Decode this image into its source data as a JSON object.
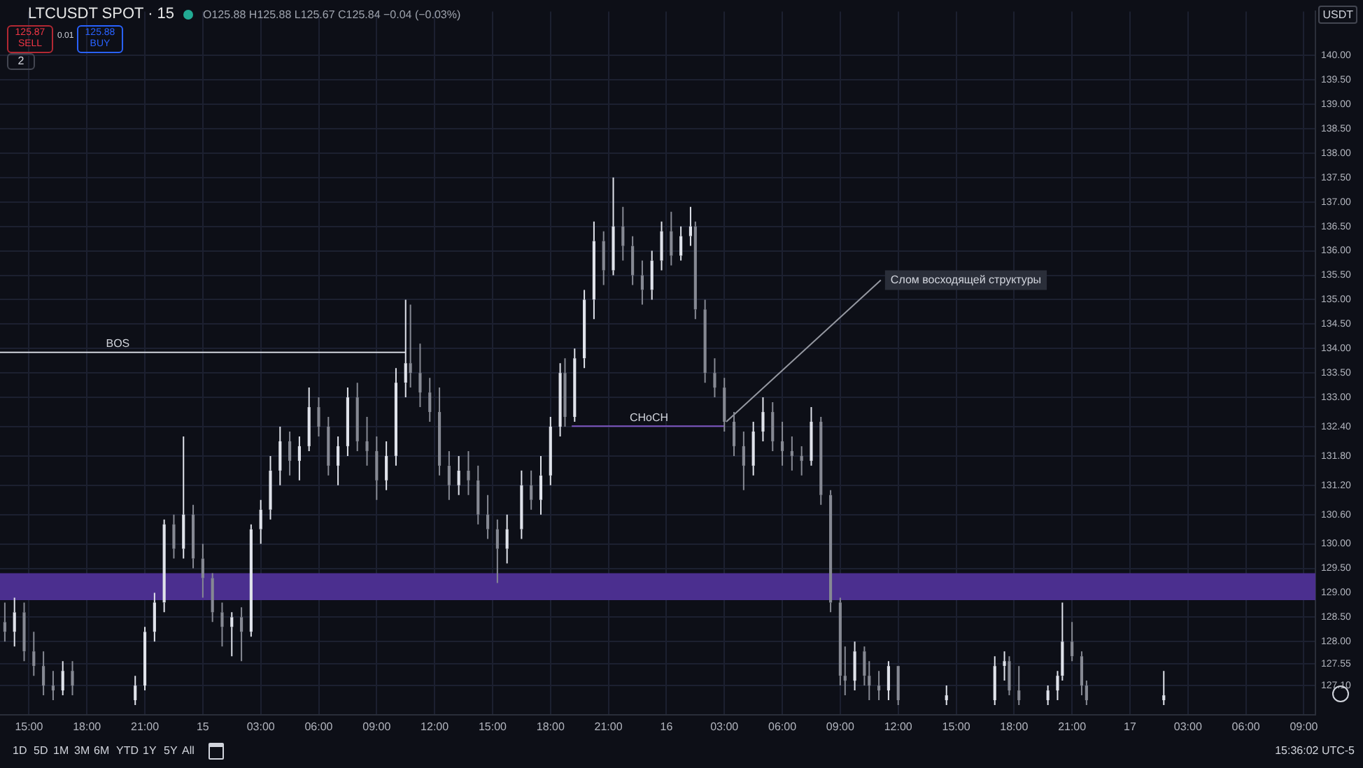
{
  "chart_data": {
    "type": "candlestick",
    "title": "LTCUSDT SPOT · 15",
    "subtitle": "O125.88 H125.88 L125.67 C125.84 −0.04 (−0.03%)",
    "ylabel": "USDT",
    "colors": [
      "#868993",
      "#e0e3eb",
      "#868993",
      "#868993",
      "#868993",
      "#868993",
      "#e0e3eb",
      "#868993",
      "#e0e3eb",
      "#e0e3eb",
      "#e0e3eb",
      "#e0e3eb",
      "#868993",
      "#e0e3eb",
      "#868993",
      "#868993",
      "#868993",
      "#868993",
      "#e0e3eb",
      "#868993",
      "#e0e3eb",
      "#e0e3eb",
      "#e0e3eb",
      "#e0e3eb",
      "#868993",
      "#e0e3eb",
      "#e0e3eb",
      "#868993",
      "#868993",
      "#e0e3eb",
      "#e0e3eb",
      "#868993",
      "#868993",
      "#868993",
      "#e0e3eb",
      "#e0e3eb",
      "#e0e3eb",
      "#868993",
      "#868993",
      "#868993",
      "#868993",
      "#868993",
      "#e0e3eb",
      "#868993",
      "#868993",
      "#868993",
      "#868993",
      "#e0e3eb",
      "#e0e3eb",
      "#868993",
      "#e0e3eb",
      "#e0e3eb",
      "#e0e3eb",
      "#868993",
      "#e0e3eb",
      "#e0e3eb",
      "#e0e3eb",
      "#868993",
      "#e0e3eb",
      "#868993",
      "#868993",
      "#868993",
      "#e0e3eb",
      "#e0e3eb",
      "#868993",
      "#e0e3eb",
      "#e0e3eb",
      "#868993",
      "#868993",
      "#868993",
      "#868993",
      "#868993",
      "#868993",
      "#e0e3eb",
      "#e0e3eb",
      "#868993",
      "#868993",
      "#868993",
      "#868993",
      "#e0e3eb",
      "#868993",
      "#868993",
      "#868993",
      "#868993",
      "#e0e3eb",
      "#868993",
      "#868993",
      "#868993",
      "#e0e3eb",
      "#868993",
      "#e0e3eb",
      "#e0e3eb",
      "#e0e3eb",
      "#868993",
      "#868993",
      "#e0e3eb",
      "#e0e3eb",
      "#e0e3eb",
      "#868993",
      "#868993",
      "#868993",
      "#e0e3eb"
    ],
    "grid": true,
    "legend": false,
    "marker": "none",
    "xlim": [
      "--01-14T13:30",
      "--01-17T09:36"
    ],
    "ylim": [
      126.5,
      140.9
    ],
    "xticks": [
      {
        "value": "--01-14T15:00",
        "label": "15:00"
      },
      {
        "value": "--01-14T18:00",
        "label": "18:00"
      },
      {
        "value": "--01-14T21:00",
        "label": "21:00"
      },
      {
        "value": "--01-15T00:00",
        "label": "15"
      },
      {
        "value": "--01-15T03:00",
        "label": "03:00"
      },
      {
        "value": "--01-15T06:00",
        "label": "06:00"
      },
      {
        "value": "--01-15T09:00",
        "label": "09:00"
      },
      {
        "value": "--01-15T12:00",
        "label": "12:00"
      },
      {
        "value": "--01-15T15:00",
        "label": "15:00"
      },
      {
        "value": "--01-15T18:00",
        "label": "18:00"
      },
      {
        "value": "--01-15T21:00",
        "label": "21:00"
      },
      {
        "value": "--01-16T00:00",
        "label": "16"
      },
      {
        "value": "--01-16T03:00",
        "label": "03:00"
      },
      {
        "value": "--01-16T06:00",
        "label": "06:00"
      },
      {
        "value": "--01-16T09:00",
        "label": "09:00"
      },
      {
        "value": "--01-16T12:00",
        "label": "12:00"
      },
      {
        "value": "--01-16T15:00",
        "label": "15:00"
      },
      {
        "value": "--01-16T18:00",
        "label": "18:00"
      },
      {
        "value": "--01-16T21:00",
        "label": "21:00"
      },
      {
        "value": "--01-17T00:00",
        "label": "17"
      },
      {
        "value": "--01-17T03:00",
        "label": "03:00"
      },
      {
        "value": "--01-17T06:00",
        "label": "06:00"
      },
      {
        "value": "--01-17T09:00",
        "label": "09:00"
      }
    ],
    "yticks": [
      {
        "value": 140,
        "label": "140.00"
      },
      {
        "value": 139.5,
        "label": "139.50"
      },
      {
        "value": 139,
        "label": "139.00"
      },
      {
        "value": 138.5,
        "label": "138.50"
      },
      {
        "value": 138,
        "label": "138.00"
      },
      {
        "value": 137.5,
        "label": "137.50"
      },
      {
        "value": 137,
        "label": "137.00"
      },
      {
        "value": 136.5,
        "label": "136.50"
      },
      {
        "value": 136,
        "label": "136.00"
      },
      {
        "value": 135.5,
        "label": "135.50"
      },
      {
        "value": 135,
        "label": "135.00"
      },
      {
        "value": 134.5,
        "label": "134.50"
      },
      {
        "value": 134,
        "label": "134.00"
      },
      {
        "value": 133.5,
        "label": "133.50"
      },
      {
        "value": 133,
        "label": "133.00"
      },
      {
        "value": 132.4,
        "label": "132.40"
      },
      {
        "value": 131.8,
        "label": "131.80"
      },
      {
        "value": 131.2,
        "label": "131.20"
      },
      {
        "value": 130.6,
        "label": "130.60"
      },
      {
        "value": 130,
        "label": "130.00"
      },
      {
        "value": 129.5,
        "label": "129.50"
      },
      {
        "value": 129,
        "label": "129.00"
      },
      {
        "value": 128.5,
        "label": "128.50"
      },
      {
        "value": 128,
        "label": "128.00"
      },
      {
        "value": 127.55,
        "label": "127.55"
      },
      {
        "value": 127.1,
        "label": "127.10"
      }
    ],
    "x": [
      "--01-14T13:45",
      "--01-14T14:15",
      "--01-14T14:45",
      "--01-14T15:15",
      "--01-14T15:45",
      "--01-14T16:15",
      "--01-14T16:45",
      "--01-14T17:15",
      "--01-14T20:30",
      "--01-14T21:00",
      "--01-14T21:30",
      "--01-14T22:00",
      "--01-14T22:30",
      "--01-14T23:00",
      "--01-14T23:30",
      "--01-15T00:00",
      "--01-15T00:30",
      "--01-15T01:00",
      "--01-15T01:30",
      "--01-15T02:00",
      "--01-15T02:30",
      "--01-15T03:00",
      "--01-15T03:30",
      "--01-15T04:00",
      "--01-15T04:30",
      "--01-15T05:00",
      "--01-15T05:30",
      "--01-15T06:00",
      "--01-15T06:30",
      "--01-15T07:00",
      "--01-15T07:30",
      "--01-15T08:00",
      "--01-15T08:30",
      "--01-15T09:00",
      "--01-15T09:30",
      "--01-15T10:00",
      "--01-15T10:30",
      "--01-15T10:45",
      "--01-15T11:15",
      "--01-15T11:45",
      "--01-15T12:15",
      "--01-15T12:45",
      "--01-15T13:15",
      "--01-15T13:45",
      "--01-15T14:15",
      "--01-15T14:45",
      "--01-15T15:15",
      "--01-15T15:45",
      "--01-15T16:30",
      "--01-15T17:00",
      "--01-15T17:30",
      "--01-15T18:00",
      "--01-15T18:30",
      "--01-15T18:45",
      "--01-15T19:15",
      "--01-15T19:45",
      "--01-15T20:15",
      "--01-15T20:45",
      "--01-15T21:15",
      "--01-15T21:45",
      "--01-15T22:15",
      "--01-15T22:45",
      "--01-15T23:15",
      "--01-15T23:45",
      "--01-16T00:15",
      "--01-16T00:45",
      "--01-16T01:15",
      "--01-16T01:30",
      "--01-16T02:00",
      "--01-16T02:30",
      "--01-16T03:00",
      "--01-16T03:30",
      "--01-16T04:00",
      "--01-16T04:30",
      "--01-16T05:00",
      "--01-16T05:30",
      "--01-16T06:00",
      "--01-16T06:30",
      "--01-16T07:00",
      "--01-16T07:30",
      "--01-16T08:00",
      "--01-16T08:30",
      "--01-16T09:00",
      "--01-16T09:15",
      "--01-16T09:45",
      "--01-16T10:15",
      "--01-16T10:30",
      "--01-16T11:00",
      "--01-16T11:30",
      "--01-16T12:00",
      "--01-16T14:30",
      "--01-16T17:00",
      "--01-16T17:30",
      "--01-16T17:45",
      "--01-16T18:15",
      "--01-16T19:45",
      "--01-16T20:15",
      "--01-16T20:30",
      "--01-16T21:00",
      "--01-16T21:30",
      "--01-16T21:45",
      "--01-17T01:45"
    ],
    "ohlc": [
      [
        128.4,
        128.8,
        128.0,
        128.2
      ],
      [
        128.2,
        128.9,
        127.9,
        128.6
      ],
      [
        128.6,
        128.8,
        127.6,
        127.8
      ],
      [
        127.8,
        128.2,
        127.3,
        127.5
      ],
      [
        127.5,
        127.8,
        126.9,
        127.1
      ],
      [
        127.1,
        127.4,
        126.8,
        127.0
      ],
      [
        127.0,
        127.6,
        126.9,
        127.4
      ],
      [
        127.4,
        127.6,
        126.9,
        127.1
      ],
      [
        126.8,
        127.3,
        126.7,
        127.1
      ],
      [
        127.1,
        128.3,
        127.0,
        128.2
      ],
      [
        128.2,
        129.0,
        128.0,
        128.8
      ],
      [
        128.8,
        130.5,
        128.6,
        130.4
      ],
      [
        130.4,
        130.6,
        129.7,
        129.9
      ],
      [
        129.9,
        132.2,
        129.7,
        130.6
      ],
      [
        130.6,
        130.8,
        129.5,
        129.7
      ],
      [
        129.7,
        130.0,
        128.9,
        129.3
      ],
      [
        129.3,
        129.4,
        128.4,
        128.6
      ],
      [
        128.6,
        128.8,
        127.9,
        128.3
      ],
      [
        128.3,
        128.6,
        127.7,
        128.5
      ],
      [
        128.5,
        128.7,
        127.6,
        128.2
      ],
      [
        128.2,
        130.4,
        128.1,
        130.3
      ],
      [
        130.3,
        130.9,
        130.0,
        130.7
      ],
      [
        130.7,
        131.8,
        130.5,
        131.5
      ],
      [
        131.5,
        132.4,
        131.2,
        132.1
      ],
      [
        132.1,
        132.3,
        131.4,
        131.7
      ],
      [
        131.7,
        132.2,
        131.3,
        132.0
      ],
      [
        132.0,
        133.2,
        131.9,
        132.8
      ],
      [
        132.8,
        133.0,
        132.2,
        132.4
      ],
      [
        132.4,
        132.6,
        131.4,
        131.6
      ],
      [
        131.6,
        132.2,
        131.2,
        132.0
      ],
      [
        132.0,
        133.2,
        131.8,
        133.0
      ],
      [
        133.0,
        133.3,
        131.9,
        132.1
      ],
      [
        132.1,
        132.6,
        131.6,
        131.9
      ],
      [
        131.9,
        132.2,
        130.9,
        131.3
      ],
      [
        131.3,
        132.1,
        131.1,
        131.8
      ],
      [
        131.8,
        133.6,
        131.6,
        133.3
      ],
      [
        133.3,
        135.0,
        133.0,
        133.7
      ],
      [
        133.7,
        134.9,
        133.2,
        133.5
      ],
      [
        133.5,
        134.1,
        132.8,
        133.1
      ],
      [
        133.1,
        133.4,
        132.5,
        132.7
      ],
      [
        132.7,
        133.2,
        131.4,
        131.6
      ],
      [
        131.6,
        131.9,
        130.9,
        131.2
      ],
      [
        131.2,
        131.8,
        131.0,
        131.5
      ],
      [
        131.5,
        131.9,
        131.0,
        131.3
      ],
      [
        131.3,
        131.6,
        130.4,
        130.6
      ],
      [
        130.6,
        131.0,
        130.1,
        130.3
      ],
      [
        130.3,
        130.5,
        129.2,
        129.9
      ],
      [
        129.9,
        130.6,
        129.6,
        130.3
      ],
      [
        130.3,
        131.5,
        130.1,
        131.2
      ],
      [
        131.2,
        131.5,
        130.7,
        130.9
      ],
      [
        130.9,
        131.8,
        130.6,
        131.4
      ],
      [
        131.4,
        132.6,
        131.2,
        132.4
      ],
      [
        132.4,
        133.7,
        132.2,
        133.5
      ],
      [
        133.5,
        133.8,
        132.4,
        132.6
      ],
      [
        132.6,
        134.0,
        132.5,
        133.8
      ],
      [
        133.8,
        135.2,
        133.6,
        135.0
      ],
      [
        135.0,
        136.6,
        134.6,
        136.2
      ],
      [
        136.2,
        136.4,
        135.3,
        135.6
      ],
      [
        135.6,
        137.5,
        135.5,
        136.5
      ],
      [
        136.5,
        136.9,
        135.8,
        136.1
      ],
      [
        136.1,
        136.3,
        135.3,
        135.5
      ],
      [
        135.5,
        135.8,
        134.9,
        135.2
      ],
      [
        135.2,
        136.0,
        135.0,
        135.8
      ],
      [
        135.8,
        136.6,
        135.6,
        136.4
      ],
      [
        136.4,
        136.8,
        135.7,
        135.9
      ],
      [
        135.9,
        136.5,
        135.8,
        136.3
      ],
      [
        136.3,
        136.9,
        136.1,
        136.5
      ],
      [
        136.5,
        136.6,
        134.6,
        134.8
      ],
      [
        134.8,
        135.0,
        133.3,
        133.5
      ],
      [
        133.5,
        133.8,
        133.0,
        133.2
      ],
      [
        133.2,
        133.4,
        132.3,
        132.5
      ],
      [
        132.5,
        132.7,
        131.8,
        132.0
      ],
      [
        132.0,
        132.3,
        131.1,
        131.6
      ],
      [
        131.6,
        132.5,
        131.4,
        132.3
      ],
      [
        132.3,
        133.0,
        132.1,
        132.7
      ],
      [
        132.7,
        132.9,
        131.9,
        132.1
      ],
      [
        132.1,
        132.5,
        131.6,
        131.9
      ],
      [
        131.9,
        132.2,
        131.5,
        131.8
      ],
      [
        131.8,
        132.0,
        131.4,
        131.7
      ],
      [
        131.7,
        132.8,
        131.6,
        132.5
      ],
      [
        132.5,
        132.6,
        130.8,
        131.0
      ],
      [
        131.0,
        131.1,
        128.6,
        128.8
      ],
      [
        128.8,
        128.9,
        127.1,
        127.3
      ],
      [
        127.3,
        127.9,
        126.9,
        127.2
      ],
      [
        127.2,
        128.0,
        127.0,
        127.8
      ],
      [
        127.8,
        127.9,
        127.1,
        127.3
      ],
      [
        127.3,
        127.6,
        126.8,
        127.1
      ],
      [
        127.1,
        127.4,
        126.8,
        127.0
      ],
      [
        127.0,
        127.6,
        126.8,
        127.5
      ],
      [
        127.5,
        127.5,
        126.7,
        126.8
      ],
      [
        126.8,
        127.1,
        126.7,
        126.9
      ],
      [
        126.8,
        127.7,
        126.7,
        127.5
      ],
      [
        127.5,
        127.8,
        127.2,
        127.6
      ],
      [
        127.6,
        127.7,
        126.9,
        127.0
      ],
      [
        127.0,
        127.5,
        126.7,
        126.8
      ],
      [
        126.8,
        127.1,
        126.7,
        127.0
      ],
      [
        127.0,
        127.4,
        126.8,
        127.3
      ],
      [
        127.3,
        128.8,
        127.2,
        128.0
      ],
      [
        128.0,
        128.4,
        127.6,
        127.7
      ],
      [
        127.7,
        127.8,
        126.9,
        127.1
      ],
      [
        127.1,
        127.2,
        126.7,
        126.8
      ],
      [
        126.8,
        127.4,
        126.7,
        126.9
      ]
    ],
    "series": [
      {
        "type": "line",
        "color": "#d1d4dc",
        "x": [
          "--01-14T13:30",
          "--01-15T10:30"
        ],
        "values": [
          133.92,
          133.92
        ]
      },
      {
        "type": "line",
        "color": "#7e57c2",
        "x": [
          "--01-15T19:06",
          "--01-16T03:00"
        ],
        "values": [
          132.41,
          132.41
        ]
      },
      {
        "type": "line",
        "color": "#9598a1",
        "x": [
          "--01-16T03:06",
          "--01-16T11:06"
        ],
        "values": [
          132.5,
          135.4
        ]
      }
    ],
    "bands": [
      {
        "axis": "y",
        "from": 128.85,
        "to": 129.4,
        "color": "#4b2f8f"
      }
    ],
    "annotations": [
      {
        "text": "BOS",
        "x": "--01-14T19:36",
        "y": 133.92
      },
      {
        "text": "CHoCH",
        "x": "--01-15T23:06",
        "y": 132.41
      },
      {
        "text": "Слом восходящей структуры",
        "x": "--01-16T11:06",
        "y": 135.4
      },
      "125.87",
      "SELL",
      "0.01",
      "125.88",
      "BUY",
      "2",
      "1D",
      "5D",
      "1M",
      "3M",
      "6M",
      "YTD",
      "1Y",
      "5Y",
      "All",
      "15:36:02 UTC-5"
    ]
  }
}
